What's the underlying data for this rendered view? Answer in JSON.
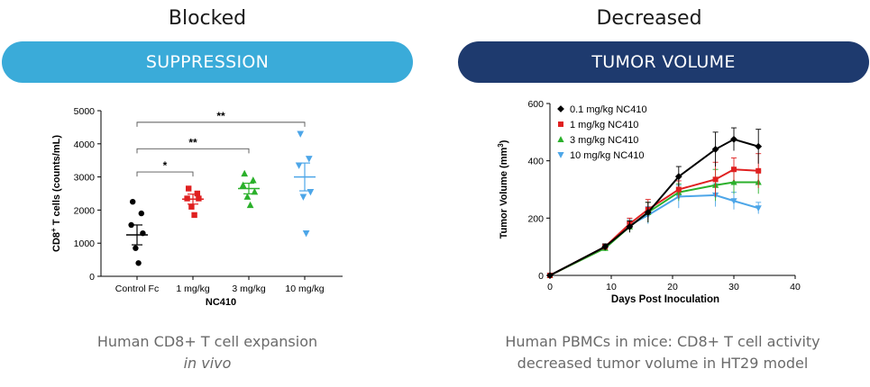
{
  "left_panel": {
    "heading": "Blocked",
    "banner": "SUPPRESSION",
    "banner_color": "#3aabd9",
    "caption_line1": "Human CD8+ T cell expansion",
    "caption_line2": "in vivo"
  },
  "right_panel": {
    "heading": "Decreased",
    "banner": "TUMOR VOLUME",
    "banner_color": "#1e3a6e",
    "caption_line1": "Human PBMCs in mice: CD8+ T cell activity",
    "caption_line2": "decreased tumor volume in HT29 model"
  },
  "chart_data": [
    {
      "type": "scatter",
      "title": "",
      "ylabel_main": "CD8",
      "ylabel_sup": "+",
      "ylabel_rest": " T cells (counts/mL)",
      "xlabel": "NC410",
      "ylim": [
        0,
        5000
      ],
      "yticks": [
        0,
        1000,
        2000,
        3000,
        4000,
        5000
      ],
      "categories": [
        "Control Fc",
        "1 mg/kg",
        "3 mg/kg",
        "10 mg/kg"
      ],
      "groups": [
        {
          "name": "Control Fc",
          "color": "#000000",
          "marker": "circle",
          "points": [
            2250,
            1900,
            1550,
            1300,
            850,
            400
          ],
          "mean": 1250,
          "sem_low": 950,
          "sem_high": 1550
        },
        {
          "name": "1 mg/kg",
          "color": "#e02020",
          "marker": "square",
          "points": [
            2650,
            2500,
            2350,
            2350,
            2100,
            1850
          ],
          "mean": 2330,
          "sem_low": 2180,
          "sem_high": 2480
        },
        {
          "name": "3 mg/kg",
          "color": "#2bb02b",
          "marker": "triangle-up",
          "points": [
            3100,
            2900,
            2750,
            2550,
            2400,
            2150
          ],
          "mean": 2650,
          "sem_low": 2490,
          "sem_high": 2810
        },
        {
          "name": "10 mg/kg",
          "color": "#4da6e8",
          "marker": "triangle-down",
          "points": [
            4300,
            3550,
            3350,
            2550,
            2400,
            1300
          ],
          "mean": 3000,
          "sem_low": 2580,
          "sem_high": 3420
        }
      ],
      "significance": [
        {
          "from": 0,
          "to": 1,
          "label": "*"
        },
        {
          "from": 0,
          "to": 2,
          "label": "**"
        },
        {
          "from": 0,
          "to": 3,
          "label": "**"
        }
      ]
    },
    {
      "type": "line",
      "title": "",
      "xlabel": "Days Post Inoculation",
      "ylabel_main": "Tumor Volume (mm",
      "ylabel_sup": "3",
      "ylabel_rest": ")",
      "xlim": [
        0,
        40
      ],
      "ylim": [
        0,
        600
      ],
      "xticks": [
        0,
        10,
        20,
        30,
        40
      ],
      "yticks": [
        0,
        200,
        400,
        600
      ],
      "x": [
        0,
        9,
        13,
        16,
        21,
        27,
        30,
        34
      ],
      "series": [
        {
          "name": "0.1 mg/kg NC410",
          "color": "#000000",
          "marker": "diamond",
          "values": [
            0,
            100,
            170,
            220,
            345,
            440,
            475,
            450
          ],
          "err": [
            0,
            10,
            20,
            35,
            35,
            60,
            40,
            60
          ]
        },
        {
          "name": "1 mg/kg NC410",
          "color": "#e02020",
          "marker": "square",
          "values": [
            0,
            100,
            180,
            230,
            300,
            335,
            370,
            365
          ],
          "err": [
            0,
            10,
            20,
            35,
            30,
            60,
            40,
            60
          ]
        },
        {
          "name": "3 mg/kg NC410",
          "color": "#2bb02b",
          "marker": "triangle",
          "values": [
            0,
            95,
            170,
            220,
            290,
            315,
            325,
            325
          ],
          "err": [
            0,
            10,
            20,
            35,
            30,
            55,
            40,
            40
          ]
        },
        {
          "name": "10 mg/kg NC410",
          "color": "#4da6e8",
          "marker": "triangle-down",
          "values": [
            0,
            100,
            175,
            210,
            275,
            280,
            260,
            235
          ],
          "err": [
            0,
            10,
            20,
            30,
            40,
            40,
            30,
            20
          ]
        }
      ]
    }
  ]
}
